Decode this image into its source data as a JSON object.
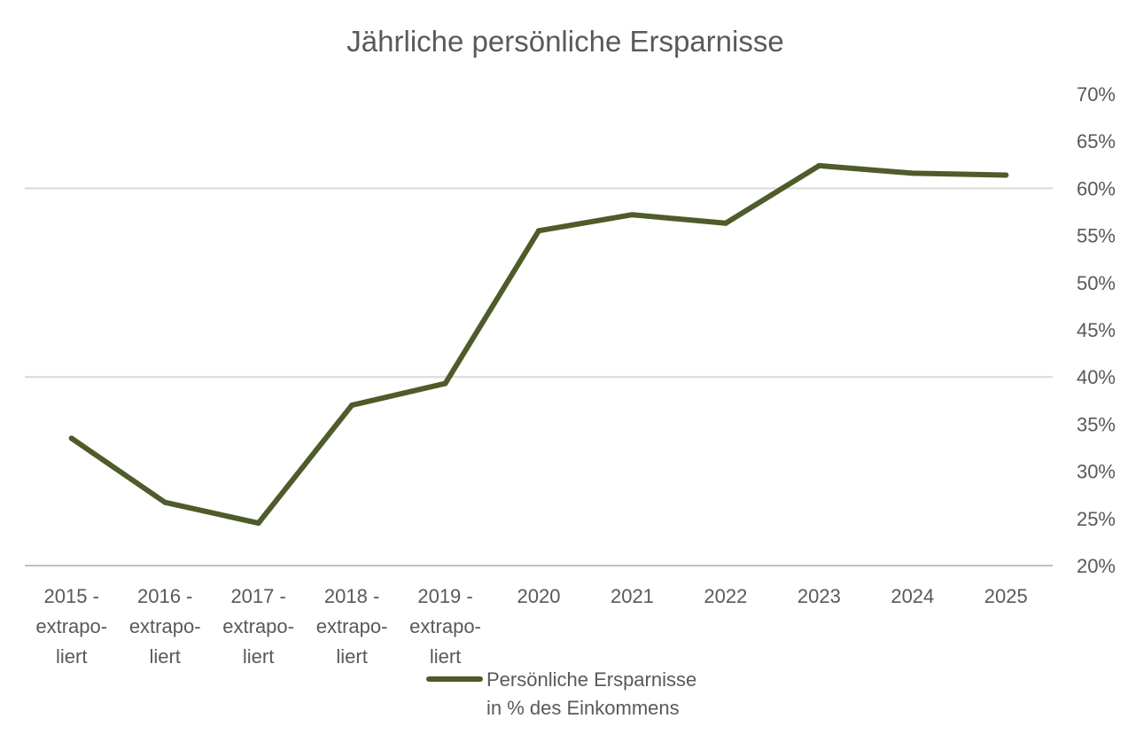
{
  "chart_data": {
    "type": "line",
    "title": "Jährliche persönliche Ersparnisse",
    "categories": [
      [
        "2015 -",
        "extrapo-",
        "liert"
      ],
      [
        "2016 -",
        "extrapo-",
        "liert"
      ],
      [
        "2017 -",
        "extrapo-",
        "liert"
      ],
      [
        "2018 -",
        "extrapo-",
        "liert"
      ],
      [
        "2019 -",
        "extrapo-",
        "liert"
      ],
      [
        "2020"
      ],
      [
        "2021"
      ],
      [
        "2022"
      ],
      [
        "2023"
      ],
      [
        "2024"
      ],
      [
        "2025"
      ]
    ],
    "series": [
      {
        "name": "Persönliche Ersparnisse in % des Einkommens",
        "legend_lines": [
          "Persönliche Ersparnisse",
          "in % des Einkommens"
        ],
        "values": [
          33.5,
          26.7,
          24.5,
          37.0,
          39.3,
          55.5,
          57.2,
          56.3,
          62.4,
          61.6,
          61.4
        ],
        "color": "#4e5b2a"
      }
    ],
    "yaxis": {
      "position": "right",
      "min": 20,
      "max": 70,
      "step": 5,
      "tick_labels": [
        "70%",
        "65%",
        "60%",
        "55%",
        "50%",
        "45%",
        "40%",
        "35%",
        "30%",
        "25%",
        "20%"
      ]
    },
    "gridlines_at": [
      20,
      40,
      60
    ],
    "legend_placement": "bottom-center",
    "colors": {
      "text": "#595959",
      "grid": "#d9d9d9",
      "axis": "#bfbfbf"
    }
  }
}
